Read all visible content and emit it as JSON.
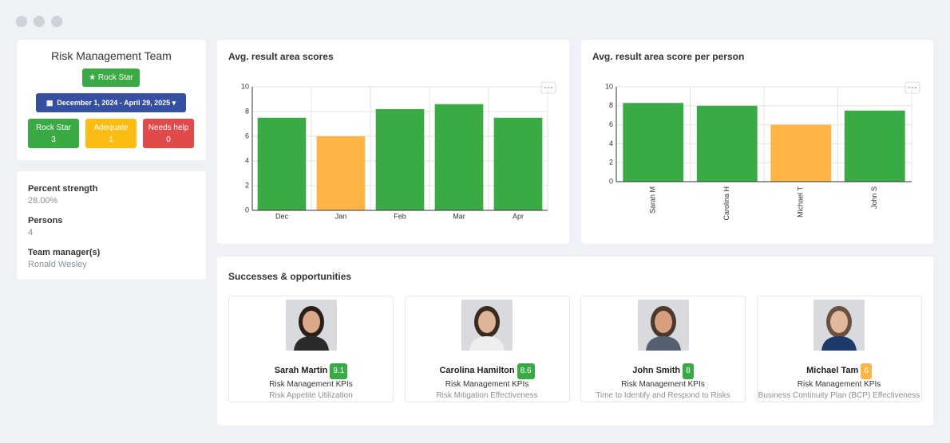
{
  "team": {
    "title": "Risk Management Team",
    "badge": "Rock Star",
    "date_range": "December 1, 2024 - April 29, 2025",
    "stats": [
      {
        "label": "Rock Star",
        "count": 3,
        "color": "#3aaa45"
      },
      {
        "label": "Adequate",
        "count": 1,
        "color": "#fbbd14"
      },
      {
        "label": "Needs help",
        "count": 0,
        "color": "#e04a4a"
      }
    ]
  },
  "info": [
    {
      "label": "Percent strength",
      "value": "28.00%"
    },
    {
      "label": "Persons",
      "value": "4"
    },
    {
      "label": "Team manager(s)",
      "value": "Ronald Wesley"
    }
  ],
  "chart_data": [
    {
      "type": "bar",
      "title": "Avg. result area scores",
      "categories": [
        "Dec",
        "Jan",
        "Feb",
        "Mar",
        "Apr"
      ],
      "values": [
        7.5,
        6,
        8.2,
        8.6,
        7.5
      ],
      "colors": [
        "#3aaa45",
        "#ffb545",
        "#3aaa45",
        "#3aaa45",
        "#3aaa45"
      ],
      "ylim": [
        0,
        10
      ],
      "yticks": [
        0,
        2,
        4,
        6,
        8,
        10
      ],
      "grid": true
    },
    {
      "type": "bar",
      "title": "Avg. result area score per person",
      "categories": [
        "Sarah M",
        "Carolina H",
        "Michael T",
        "John S"
      ],
      "values": [
        8.3,
        8,
        6,
        7.5
      ],
      "colors": [
        "#3aaa45",
        "#3aaa45",
        "#ffb545",
        "#3aaa45"
      ],
      "ylim": [
        0,
        10
      ],
      "yticks": [
        0,
        2,
        4,
        6,
        8,
        10
      ],
      "grid": true,
      "rotated_labels": true
    }
  ],
  "successes": {
    "title": "Successes & opportunities",
    "people": [
      {
        "name": "Sarah Martin",
        "score": "9.1",
        "color": "#3aaa45",
        "kpi": "Risk Management KPIs",
        "area": "Risk Appetite Utilization"
      },
      {
        "name": "Carolina Hamilton",
        "score": "8.6",
        "color": "#3aaa45",
        "kpi": "Risk Management KPIs",
        "area": "Risk Mitigation Effectiveness"
      },
      {
        "name": "John Smith",
        "score": "8",
        "color": "#3aaa45",
        "kpi": "Risk Management KPIs",
        "area": "Time to Identify and Respond to Risks"
      },
      {
        "name": "Michael Tam",
        "score": "6",
        "color": "#ffb545",
        "kpi": "Risk Management KPIs",
        "area": "Business Continuity Plan (BCP) Effectiveness"
      }
    ]
  }
}
